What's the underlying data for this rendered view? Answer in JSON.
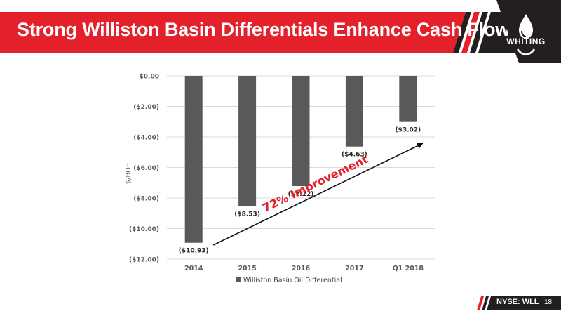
{
  "slide": {
    "title": "Strong Williston Basin Differentials Enhance Cash Flow",
    "logo_text": "WHITING",
    "footer_ticker_prefix": "NYSE: ",
    "footer_ticker": "WLL",
    "page_number": "18"
  },
  "colors": {
    "brand_red": "#e4202b",
    "dark": "#231f20",
    "bar": "#595959",
    "annotation": "#e4202b"
  },
  "chart_data": {
    "type": "bar",
    "categories": [
      "2014",
      "2015",
      "2016",
      "2017",
      "Q1 2018"
    ],
    "series": [
      {
        "name": "Williston Basin Oil Differential",
        "values": [
          -10.93,
          -8.53,
          -7.22,
          -4.63,
          -3.02
        ]
      }
    ],
    "data_labels": [
      "($10.93)",
      "($8.53)",
      "($7.22)",
      "($4.63)",
      "($3.02)"
    ],
    "ylabel": "$/BOE",
    "ylim": [
      -12,
      0
    ],
    "yticks": [
      0,
      -2,
      -4,
      -6,
      -8,
      -10,
      -12
    ],
    "ytick_labels": [
      "$0.00",
      "($2.00)",
      "($4.00)",
      "($6.00)",
      "($8.00)",
      "($10.00)",
      "($12.00)"
    ],
    "grid": true,
    "legend": "bottom",
    "annotation": {
      "text": "72% Improvement",
      "from_category": "2014",
      "to_category": "Q1 2018"
    }
  }
}
